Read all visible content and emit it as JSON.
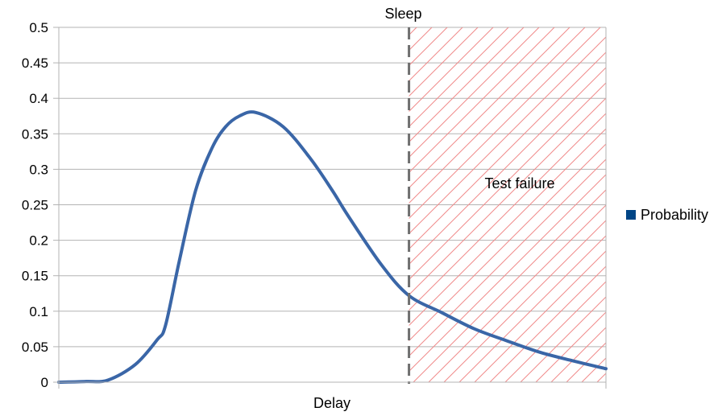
{
  "chart_data": {
    "type": "line",
    "title": "",
    "xlabel": "Delay",
    "ylabel": "",
    "ylim": [
      0,
      0.5
    ],
    "yticks": [
      0,
      0.05,
      0.1,
      0.15,
      0.2,
      0.25,
      0.3,
      0.35,
      0.4,
      0.45,
      0.5
    ],
    "ytick_labels": [
      "0",
      "0.05",
      "0.1",
      "0.15",
      "0.2",
      "0.25",
      "0.3",
      "0.35",
      "0.4",
      "0.45",
      "0.5"
    ],
    "xlim": [
      0,
      10
    ],
    "grid": "horizontal",
    "legend": {
      "placement": "right",
      "entries": [
        "Probability"
      ]
    },
    "series": [
      {
        "name": "Probability",
        "color": "#3a66a7",
        "x": [
          0,
          0.5,
          0.9,
          1.4,
          1.8,
          1.95,
          2.2,
          2.5,
          2.8,
          3.05,
          3.3,
          3.6,
          4.1,
          4.6,
          5.0,
          5.3,
          5.9,
          6.4,
          7.0,
          7.6,
          8.2,
          8.8,
          9.4,
          10.0
        ],
        "y": [
          0,
          0.001,
          0.003,
          0.025,
          0.06,
          0.08,
          0.17,
          0.27,
          0.33,
          0.36,
          0.375,
          0.38,
          0.36,
          0.315,
          0.27,
          0.233,
          0.165,
          0.122,
          0.098,
          0.075,
          0.058,
          0.042,
          0.03,
          0.019
        ]
      }
    ],
    "annotations": {
      "threshold": {
        "label": "Sleep",
        "x": 6.4,
        "color": "#707070"
      },
      "region": {
        "label": "Test failure",
        "x_start": 6.4,
        "x_end": 10.0,
        "hatch_color": "#f08a8a"
      }
    }
  }
}
